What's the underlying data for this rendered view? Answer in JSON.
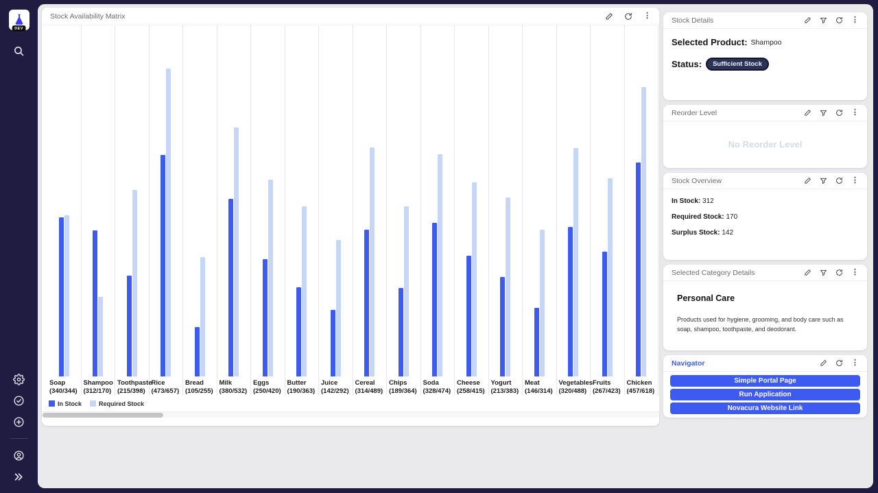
{
  "app": {
    "logo_badge": "DEV",
    "sidebar_icons_top": [
      "app-logo",
      "search"
    ],
    "sidebar_icons_bottom": [
      "settings",
      "check-circle",
      "add-circle",
      "account",
      "expand-chevrons"
    ]
  },
  "chart_card": {
    "title": "Stock Availability Matrix",
    "actions": [
      "edit",
      "refresh",
      "menu"
    ]
  },
  "chart_data": {
    "type": "bar",
    "title": "Stock Availability Matrix",
    "categories": [
      "Soap",
      "Shampoo",
      "Toothpaste",
      "Rice",
      "Bread",
      "Milk",
      "Eggs",
      "Butter",
      "Juice",
      "Cereal",
      "Chips",
      "Soda",
      "Cheese",
      "Yogurt",
      "Meat",
      "Vegetables",
      "Fruits",
      "Chicken"
    ],
    "series": [
      {
        "name": "In Stock",
        "color": "#3d5af1",
        "values": [
          340,
          312,
          215,
          473,
          105,
          380,
          250,
          190,
          142,
          314,
          189,
          328,
          258,
          213,
          146,
          320,
          267,
          457
        ]
      },
      {
        "name": "Required Stock",
        "color": "#c5d6f9",
        "values": [
          344,
          170,
          398,
          657,
          255,
          532,
          420,
          363,
          292,
          489,
          364,
          474,
          415,
          383,
          314,
          488,
          423,
          618
        ]
      }
    ],
    "category_label_format": "Name newline (inStock/requiredStock)",
    "ylim": [
      0,
      750
    ],
    "grid": "vertical-category-separators",
    "legend_position": "bottom-left",
    "has_horizontal_scrollbar": true
  },
  "panels": {
    "stock_details": {
      "title": "Stock Details",
      "actions": [
        "edit",
        "filter",
        "refresh",
        "menu"
      ],
      "selected_product_label": "Selected Product:",
      "selected_product": "Shampoo",
      "status_label": "Status:",
      "status_badge": "Sufficient Stock"
    },
    "reorder_level": {
      "title": "Reorder Level",
      "actions": [
        "edit",
        "filter",
        "refresh",
        "menu"
      ],
      "empty_text": "No Reorder Level"
    },
    "stock_overview": {
      "title": "Stock Overview",
      "actions": [
        "edit",
        "filter",
        "refresh",
        "menu"
      ],
      "rows": [
        {
          "label": "In Stock:",
          "value": "312"
        },
        {
          "label": "Required Stock:",
          "value": "170"
        },
        {
          "label": "Surplus Stock:",
          "value": "142"
        }
      ]
    },
    "category_details": {
      "title": "Selected Category Details",
      "actions": [
        "edit",
        "filter",
        "refresh",
        "menu"
      ],
      "category": "Personal Care",
      "description": "Products used for hygiene, grooming, and body care such as soap, shampoo, toothpaste, and deodorant."
    },
    "navigator": {
      "title": "Navigator",
      "actions": [
        "edit",
        "refresh",
        "menu"
      ],
      "buttons": [
        "Simple Portal Page",
        "Run Application",
        "Novacura Website Link"
      ]
    }
  },
  "colors": {
    "accent_blue": "#3d5af1",
    "required_stock_light": "#c5d6f9",
    "sidebar_bg": "#201c41",
    "main_bg": "#eaeaec",
    "status_badge_bg": "#2b3357",
    "navigator_title": "#3d5af1",
    "empty_text_gray": "#d4dbe8"
  }
}
